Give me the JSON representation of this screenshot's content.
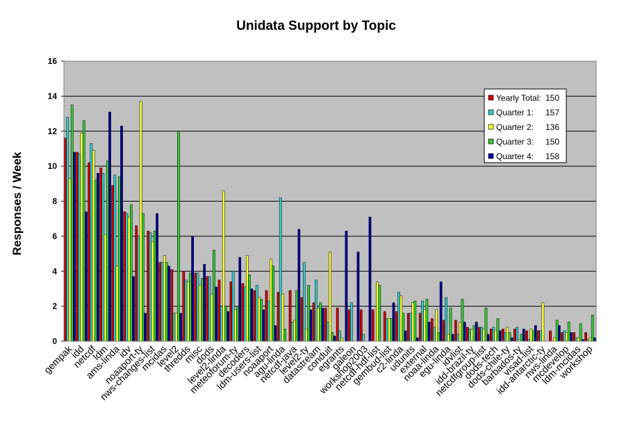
{
  "chart_data": {
    "type": "bar",
    "title": "Unidata Support by Topic",
    "xlabel": "",
    "ylabel": "Responses / Week",
    "ylim": [
      0,
      16
    ],
    "yticks": [
      0,
      2,
      4,
      6,
      8,
      10,
      12,
      14,
      16
    ],
    "grid": true,
    "legend_position": "top-right",
    "plot_background": "#c0c0c0",
    "categories": [
      "gempak",
      "idd",
      "netcdf",
      "ldm",
      "ams-linda",
      "idv",
      "noaaport-ty",
      "nws-changes-list",
      "mcidas",
      "level2",
      "thredds",
      "misc",
      "dods",
      "level2-linda",
      "meteoforum-ty",
      "decoders",
      "ldm-users-list",
      "noaaport",
      "agu-linda",
      "netcdf-java",
      "level2-ty",
      "datastream",
      "conduit",
      "egrants",
      "galeon",
      "workshop2003",
      "netcdf-hdf-list",
      "gembud-list",
      "c2-linda",
      "udunits",
      "external",
      "noaa-linda",
      "egu-linda",
      "idvlist",
      "idd-brazil-ty",
      "netcdfgroup-list",
      "dods-tech",
      "dods-chile-ty",
      "barbados-ty",
      "visad-list",
      "idd-antarctic-ty",
      "nws-linda",
      "mcdevelop",
      "ldm-mcidas",
      "workshop"
    ],
    "series": [
      {
        "name": "Yearly Total:",
        "total": "150",
        "color": "#cc0000",
        "values": [
          11.6,
          10.8,
          10.2,
          9.9,
          8.9,
          7.4,
          6.6,
          6.3,
          4.5,
          4.1,
          4.0,
          3.9,
          3.7,
          3.5,
          3.4,
          3.3,
          2.9,
          2.9,
          2.8,
          2.9,
          2.5,
          2.2,
          1.9,
          1.9,
          1.8,
          1.8,
          1.8,
          1.7,
          1.7,
          1.6,
          1.6,
          1.3,
          1.2,
          1.2,
          0.8,
          0.8,
          0.7,
          0.7,
          0.7,
          0.6,
          0.6,
          0.6,
          0.5,
          0.5,
          0.5
        ]
      },
      {
        "name": "Quarter 1:",
        "total": "157",
        "color": "#33cccc",
        "values": [
          12.8,
          10.7,
          11.3,
          9.6,
          9.5,
          7.3,
          5.9,
          6.2,
          4.5,
          1.6,
          3.5,
          3.9,
          3.7,
          2.0,
          4.0,
          3.1,
          3.2,
          2.3,
          8.2,
          1.1,
          4.5,
          3.5,
          1.1,
          0.6,
          2.2,
          0.4,
          0.0,
          1.3,
          2.8,
          1.6,
          2.3,
          0.8,
          2.5,
          0.4,
          0.7,
          0.8,
          0.8,
          0.5,
          0.8,
          0.1,
          0.6,
          0.0,
          0.6,
          0.2,
          0.1
        ]
      },
      {
        "name": "Quarter 2:",
        "total": "136",
        "color": "#ffff33",
        "values": [
          9.3,
          11.9,
          10.9,
          6.1,
          4.3,
          7.1,
          13.7,
          5.7,
          4.9,
          1.6,
          3.4,
          3.2,
          2.7,
          8.6,
          1.8,
          4.9,
          2.5,
          4.7,
          2.7,
          1.2,
          0.7,
          1.9,
          5.1,
          0.2,
          0.0,
          0.0,
          3.4,
          1.3,
          2.6,
          2.2,
          1.8,
          1.8,
          0.4,
          1.1,
          0.7,
          0.7,
          0.6,
          0.8,
          0.1,
          0.7,
          2.2,
          0.2,
          0.5,
          0.2,
          0.2
        ]
      },
      {
        "name": "Quarter 3:",
        "total": "150",
        "color": "#33cc33",
        "values": [
          13.5,
          12.6,
          9.2,
          10.3,
          9.4,
          7.8,
          7.3,
          6.3,
          4.5,
          12.0,
          3.9,
          3.6,
          5.2,
          2.0,
          2.0,
          3.8,
          2.4,
          4.3,
          0.7,
          2.9,
          3.2,
          2.2,
          0.5,
          0.0,
          0.0,
          0.0,
          3.2,
          1.3,
          1.6,
          2.3,
          2.4,
          0.5,
          1.9,
          2.4,
          0.9,
          1.9,
          1.3,
          0.5,
          0.4,
          0.6,
          0.0,
          1.2,
          1.1,
          1.0,
          1.5
        ]
      },
      {
        "name": "Quarter 4:",
        "total": "158",
        "color": "#000099",
        "values": [
          10.8,
          7.4,
          9.6,
          13.1,
          12.3,
          3.7,
          1.6,
          7.3,
          4.3,
          1.6,
          6.0,
          4.4,
          3.1,
          1.7,
          4.8,
          3.0,
          1.8,
          0.9,
          0.0,
          6.4,
          1.8,
          1.9,
          0.3,
          6.3,
          5.1,
          7.1,
          0.0,
          2.2,
          0.6,
          0.2,
          1.1,
          3.4,
          0.4,
          1.1,
          1.1,
          0.4,
          0.6,
          0.2,
          0.7,
          0.9,
          0.0,
          0.9,
          0.5,
          0.1,
          0.2
        ]
      }
    ]
  }
}
